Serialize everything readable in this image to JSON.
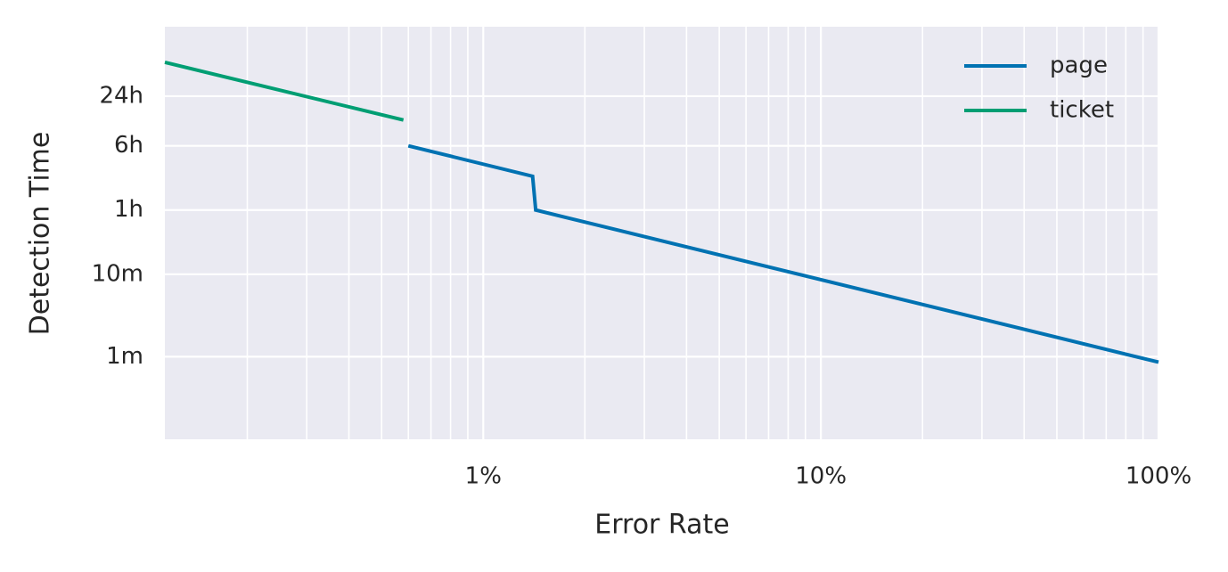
{
  "chart_data": {
    "type": "line",
    "xlabel": "Error Rate",
    "ylabel": "Detection Time",
    "xscale": "log",
    "yscale": "log",
    "grid": true,
    "legend": "upper right",
    "xlim": [
      0.114,
      100
    ],
    "ylim": [
      0.1,
      10000
    ],
    "xticks": [
      {
        "value": 1,
        "label": "1%"
      },
      {
        "value": 10,
        "label": "10%"
      },
      {
        "value": 100,
        "label": "100%"
      }
    ],
    "xminorticks": [
      0.2,
      0.3,
      0.4,
      0.5,
      0.6,
      0.7,
      0.8,
      0.9,
      2,
      3,
      4,
      5,
      6,
      7,
      8,
      9,
      20,
      30,
      40,
      50,
      60,
      70,
      80,
      90
    ],
    "yticks": [
      {
        "value": 1,
        "label": "1m"
      },
      {
        "value": 10,
        "label": "10m"
      },
      {
        "value": 60,
        "label": "1h"
      },
      {
        "value": 360,
        "label": "6h"
      },
      {
        "value": 1440,
        "label": "24h"
      }
    ],
    "series": [
      {
        "name": "page",
        "color": "#0072b2",
        "x": [
          0.6,
          1.4,
          1.43,
          100
        ],
        "values": [
          360,
          154,
          60,
          0.86
        ]
      },
      {
        "name": "ticket",
        "color": "#009e73",
        "x": [
          0.114,
          0.58
        ],
        "values": [
          3700,
          740
        ]
      }
    ]
  }
}
